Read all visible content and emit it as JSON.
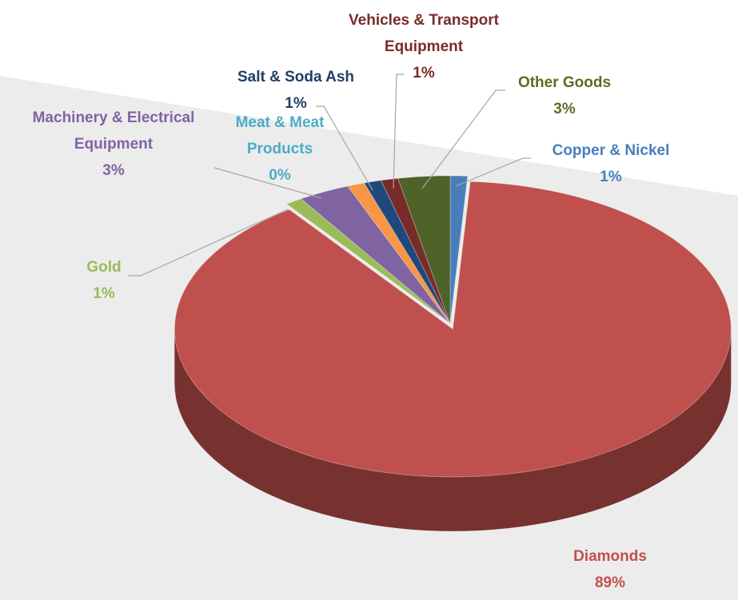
{
  "chart_data": {
    "type": "pie",
    "categories": [
      "Copper & Nickel",
      "Diamonds",
      "Gold",
      "Machinery & Electrical Equipment",
      "Meat & Meat Products",
      null,
      "Salt & Soda Ash",
      "Vehicles & Transport Equipment",
      "Other Goods"
    ],
    "values": [
      1,
      89,
      1,
      3,
      0,
      1,
      1,
      1,
      3
    ],
    "value_labels": [
      "1%",
      "89%",
      "1%",
      "3%",
      "0%",
      null,
      "1%",
      "1%",
      "3%"
    ],
    "colors": [
      "#4a7ebb",
      "#c0504d",
      "#9bbb59",
      "#8064a2",
      "#4bacc6",
      "#f79646",
      "#1f497d",
      "#772c2a",
      "#4f6228"
    ],
    "label_colors": [
      "#4a7ebb",
      "#c0504d",
      "#9bbb59",
      "#8064a2",
      "#4bacc6",
      null,
      "#1f3f66",
      "#7b2a2a",
      "#5a6e23"
    ]
  }
}
